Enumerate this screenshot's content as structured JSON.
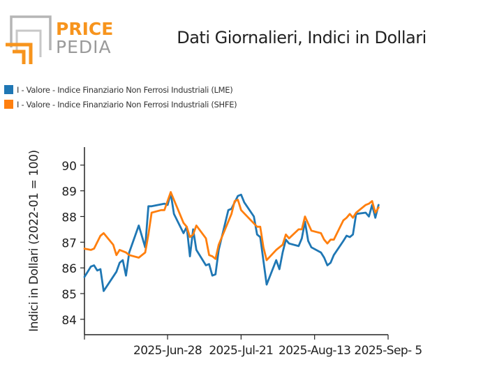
{
  "brand": {
    "word_top": "PRICE",
    "word_bottom": "PEDIA",
    "color_orange": "#F7941D",
    "color_gray": "#9A9A9A"
  },
  "colors": {
    "series_lme": "#1F77B4",
    "series_shfe": "#FF7F0E",
    "axis": "#222222"
  },
  "chart_data": {
    "type": "line",
    "title": "Dati Giornalieri, Indici in Dollari",
    "ylabel": "Indici in Dollari (2022-01 = 100)",
    "xlabel": "",
    "ylim": [
      83.4,
      90.7
    ],
    "yticks": [
      84,
      85,
      86,
      87,
      88,
      89,
      90
    ],
    "xlim": [
      "2025-06-02",
      "2025-09-05"
    ],
    "xticks": [
      {
        "date": "2025-06-02",
        "label": ""
      },
      {
        "date": "2025-06-28",
        "label": "2025-Jun-28"
      },
      {
        "date": "2025-07-21",
        "label": "2025-Jul-21"
      },
      {
        "date": "2025-08-13",
        "label": "2025-Aug-13"
      },
      {
        "date": "2025-09-05",
        "label": "2025-Sep- 5"
      }
    ],
    "legend_position": "top-left",
    "grid": false,
    "series": [
      {
        "name": "I - Valore - Indice Finanziario Non Ferrosi Industriali (LME)",
        "color": "#1F77B4",
        "points": [
          [
            "2025-06-02",
            85.65
          ],
          [
            "2025-06-03",
            85.85
          ],
          [
            "2025-06-04",
            86.05
          ],
          [
            "2025-06-05",
            86.1
          ],
          [
            "2025-06-06",
            85.9
          ],
          [
            "2025-06-07",
            85.95
          ],
          [
            "2025-06-08",
            85.1
          ],
          [
            "2025-06-12",
            85.85
          ],
          [
            "2025-06-13",
            86.2
          ],
          [
            "2025-06-14",
            86.3
          ],
          [
            "2025-06-15",
            85.7
          ],
          [
            "2025-06-16",
            86.6
          ],
          [
            "2025-06-19",
            87.65
          ],
          [
            "2025-06-21",
            86.8
          ],
          [
            "2025-06-22",
            88.4
          ],
          [
            "2025-06-23",
            88.4
          ],
          [
            "2025-06-27",
            88.5
          ],
          [
            "2025-06-28",
            88.45
          ],
          [
            "2025-06-29",
            88.9
          ],
          [
            "2025-06-30",
            88.1
          ],
          [
            "2025-07-03",
            87.35
          ],
          [
            "2025-07-04",
            87.6
          ],
          [
            "2025-07-05",
            86.45
          ],
          [
            "2025-07-06",
            87.5
          ],
          [
            "2025-07-07",
            86.7
          ],
          [
            "2025-07-10",
            86.1
          ],
          [
            "2025-07-11",
            86.15
          ],
          [
            "2025-07-12",
            85.7
          ],
          [
            "2025-07-13",
            85.75
          ],
          [
            "2025-07-14",
            86.7
          ],
          [
            "2025-07-17",
            88.25
          ],
          [
            "2025-07-18",
            88.3
          ],
          [
            "2025-07-20",
            88.8
          ],
          [
            "2025-07-21",
            88.85
          ],
          [
            "2025-07-22",
            88.55
          ],
          [
            "2025-07-25",
            88.0
          ],
          [
            "2025-07-26",
            87.3
          ],
          [
            "2025-07-27",
            87.2
          ],
          [
            "2025-07-29",
            85.35
          ],
          [
            "2025-08-01",
            86.3
          ],
          [
            "2025-08-02",
            85.95
          ],
          [
            "2025-08-03",
            86.6
          ],
          [
            "2025-08-04",
            87.1
          ],
          [
            "2025-08-05",
            86.95
          ],
          [
            "2025-08-08",
            86.85
          ],
          [
            "2025-08-09",
            87.15
          ],
          [
            "2025-08-10",
            87.8
          ],
          [
            "2025-08-11",
            87.05
          ],
          [
            "2025-08-12",
            86.8
          ],
          [
            "2025-08-15",
            86.6
          ],
          [
            "2025-08-16",
            86.4
          ],
          [
            "2025-08-17",
            86.1
          ],
          [
            "2025-08-18",
            86.2
          ],
          [
            "2025-08-19",
            86.5
          ],
          [
            "2025-08-22",
            87.05
          ],
          [
            "2025-08-23",
            87.25
          ],
          [
            "2025-08-24",
            87.2
          ],
          [
            "2025-08-25",
            87.3
          ],
          [
            "2025-08-26",
            88.1
          ],
          [
            "2025-08-29",
            88.15
          ],
          [
            "2025-08-30",
            88.0
          ],
          [
            "2025-08-31",
            88.45
          ],
          [
            "2025-09-01",
            87.95
          ],
          [
            "2025-09-02",
            88.45
          ]
        ]
      },
      {
        "name": "I - Valore - Indice Finanziario Non Ferrosi Industriali (SHFE)",
        "color": "#FF7F0E",
        "points": [
          [
            "2025-06-02",
            86.75
          ],
          [
            "2025-06-04",
            86.7
          ],
          [
            "2025-06-05",
            86.75
          ],
          [
            "2025-06-07",
            87.25
          ],
          [
            "2025-06-08",
            87.35
          ],
          [
            "2025-06-11",
            86.9
          ],
          [
            "2025-06-12",
            86.5
          ],
          [
            "2025-06-13",
            86.7
          ],
          [
            "2025-06-15",
            86.6
          ],
          [
            "2025-06-16",
            86.5
          ],
          [
            "2025-06-19",
            86.4
          ],
          [
            "2025-06-21",
            86.6
          ],
          [
            "2025-06-22",
            87.3
          ],
          [
            "2025-06-23",
            88.15
          ],
          [
            "2025-06-26",
            88.25
          ],
          [
            "2025-06-27",
            88.25
          ],
          [
            "2025-06-29",
            88.95
          ],
          [
            "2025-07-03",
            87.75
          ],
          [
            "2025-07-04",
            87.6
          ],
          [
            "2025-07-05",
            87.2
          ],
          [
            "2025-07-06",
            87.3
          ],
          [
            "2025-07-07",
            87.65
          ],
          [
            "2025-07-10",
            87.15
          ],
          [
            "2025-07-11",
            86.5
          ],
          [
            "2025-07-12",
            86.45
          ],
          [
            "2025-07-13",
            86.35
          ],
          [
            "2025-07-14",
            86.9
          ],
          [
            "2025-07-18",
            88.1
          ],
          [
            "2025-07-19",
            88.6
          ],
          [
            "2025-07-20",
            88.65
          ],
          [
            "2025-07-21",
            88.25
          ],
          [
            "2025-07-26",
            87.6
          ],
          [
            "2025-07-27",
            87.6
          ],
          [
            "2025-07-28",
            86.8
          ],
          [
            "2025-07-29",
            86.3
          ],
          [
            "2025-08-01",
            86.7
          ],
          [
            "2025-08-03",
            86.9
          ],
          [
            "2025-08-04",
            87.3
          ],
          [
            "2025-08-05",
            87.15
          ],
          [
            "2025-08-08",
            87.5
          ],
          [
            "2025-08-09",
            87.5
          ],
          [
            "2025-08-10",
            88.0
          ],
          [
            "2025-08-12",
            87.45
          ],
          [
            "2025-08-15",
            87.35
          ],
          [
            "2025-08-16",
            87.1
          ],
          [
            "2025-08-17",
            86.95
          ],
          [
            "2025-08-18",
            87.1
          ],
          [
            "2025-08-19",
            87.1
          ],
          [
            "2025-08-22",
            87.85
          ],
          [
            "2025-08-23",
            87.95
          ],
          [
            "2025-08-24",
            88.1
          ],
          [
            "2025-08-25",
            87.95
          ],
          [
            "2025-08-26",
            88.15
          ],
          [
            "2025-08-29",
            88.45
          ],
          [
            "2025-08-30",
            88.5
          ],
          [
            "2025-08-31",
            88.6
          ],
          [
            "2025-09-01",
            88.15
          ],
          [
            "2025-09-02",
            88.35
          ]
        ]
      }
    ]
  }
}
